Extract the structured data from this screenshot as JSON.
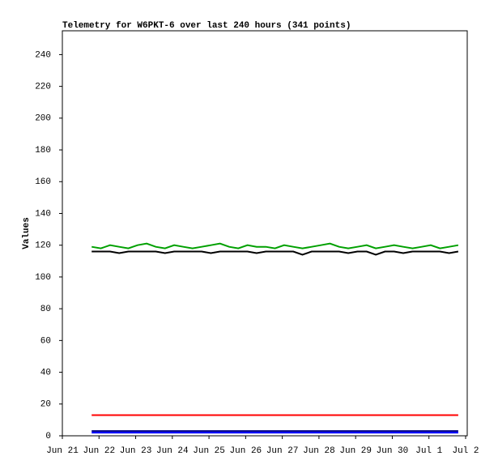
{
  "chart_data": {
    "type": "line",
    "title": "Telemetry for W6PKT-6 over last 240 hours (341 points)",
    "y_label": "Values",
    "xticks": [
      "Jun 21",
      "Jun 22",
      "Jun 23",
      "Jun 24",
      "Jun 25",
      "Jun 26",
      "Jun 27",
      "Jun 28",
      "Jun 29",
      "Jun 30",
      "Jul 1",
      "Jul 2"
    ],
    "ylim": [
      0,
      255
    ],
    "yticks": [
      0,
      20,
      40,
      60,
      80,
      100,
      120,
      140,
      160,
      180,
      200,
      220,
      240
    ],
    "series": [
      {
        "color": "#00a000",
        "values": [
          119,
          118,
          120,
          119,
          118,
          120,
          121,
          119,
          118,
          120,
          119,
          118,
          119,
          120,
          121,
          119,
          118,
          120,
          119,
          119,
          118,
          120,
          119,
          118,
          119,
          120,
          121,
          119,
          118,
          119,
          120,
          118,
          119,
          120,
          119,
          118,
          119,
          120,
          118,
          119,
          120
        ]
      },
      {
        "color": "#000000",
        "values": [
          116,
          116,
          116,
          115,
          116,
          116,
          116,
          116,
          115,
          116,
          116,
          116,
          116,
          115,
          116,
          116,
          116,
          116,
          115,
          116,
          116,
          116,
          116,
          114,
          116,
          116,
          116,
          116,
          115,
          116,
          116,
          114,
          116,
          116,
          115,
          116,
          116,
          116,
          116,
          115,
          116
        ]
      },
      {
        "color": "#ff0000",
        "values": [
          13,
          13,
          13,
          13,
          13,
          13,
          13,
          13,
          13,
          13,
          13,
          13,
          13,
          13,
          13,
          13,
          13,
          13,
          13,
          13,
          13,
          13,
          13,
          13,
          13,
          13,
          13,
          13,
          13,
          13,
          13,
          13,
          13,
          13,
          13,
          13,
          13,
          13,
          13,
          13,
          13
        ]
      },
      {
        "color": "#000080",
        "values": [
          3,
          3,
          3,
          3,
          3,
          3,
          3,
          3,
          3,
          3,
          3,
          3,
          3,
          3,
          3,
          3,
          3,
          3,
          3,
          3,
          3,
          3,
          3,
          3,
          3,
          3,
          3,
          3,
          3,
          3,
          3,
          3,
          3,
          3,
          3,
          3,
          3,
          3,
          3,
          3,
          3
        ]
      },
      {
        "color": "#0000ff",
        "values": [
          2,
          2,
          2,
          2,
          2,
          2,
          2,
          2,
          2,
          2,
          2,
          2,
          2,
          2,
          2,
          2,
          2,
          2,
          2,
          2,
          2,
          2,
          2,
          2,
          2,
          2,
          2,
          2,
          2,
          2,
          2,
          2,
          2,
          2,
          2,
          2,
          2,
          2,
          2,
          2,
          2
        ]
      }
    ]
  }
}
